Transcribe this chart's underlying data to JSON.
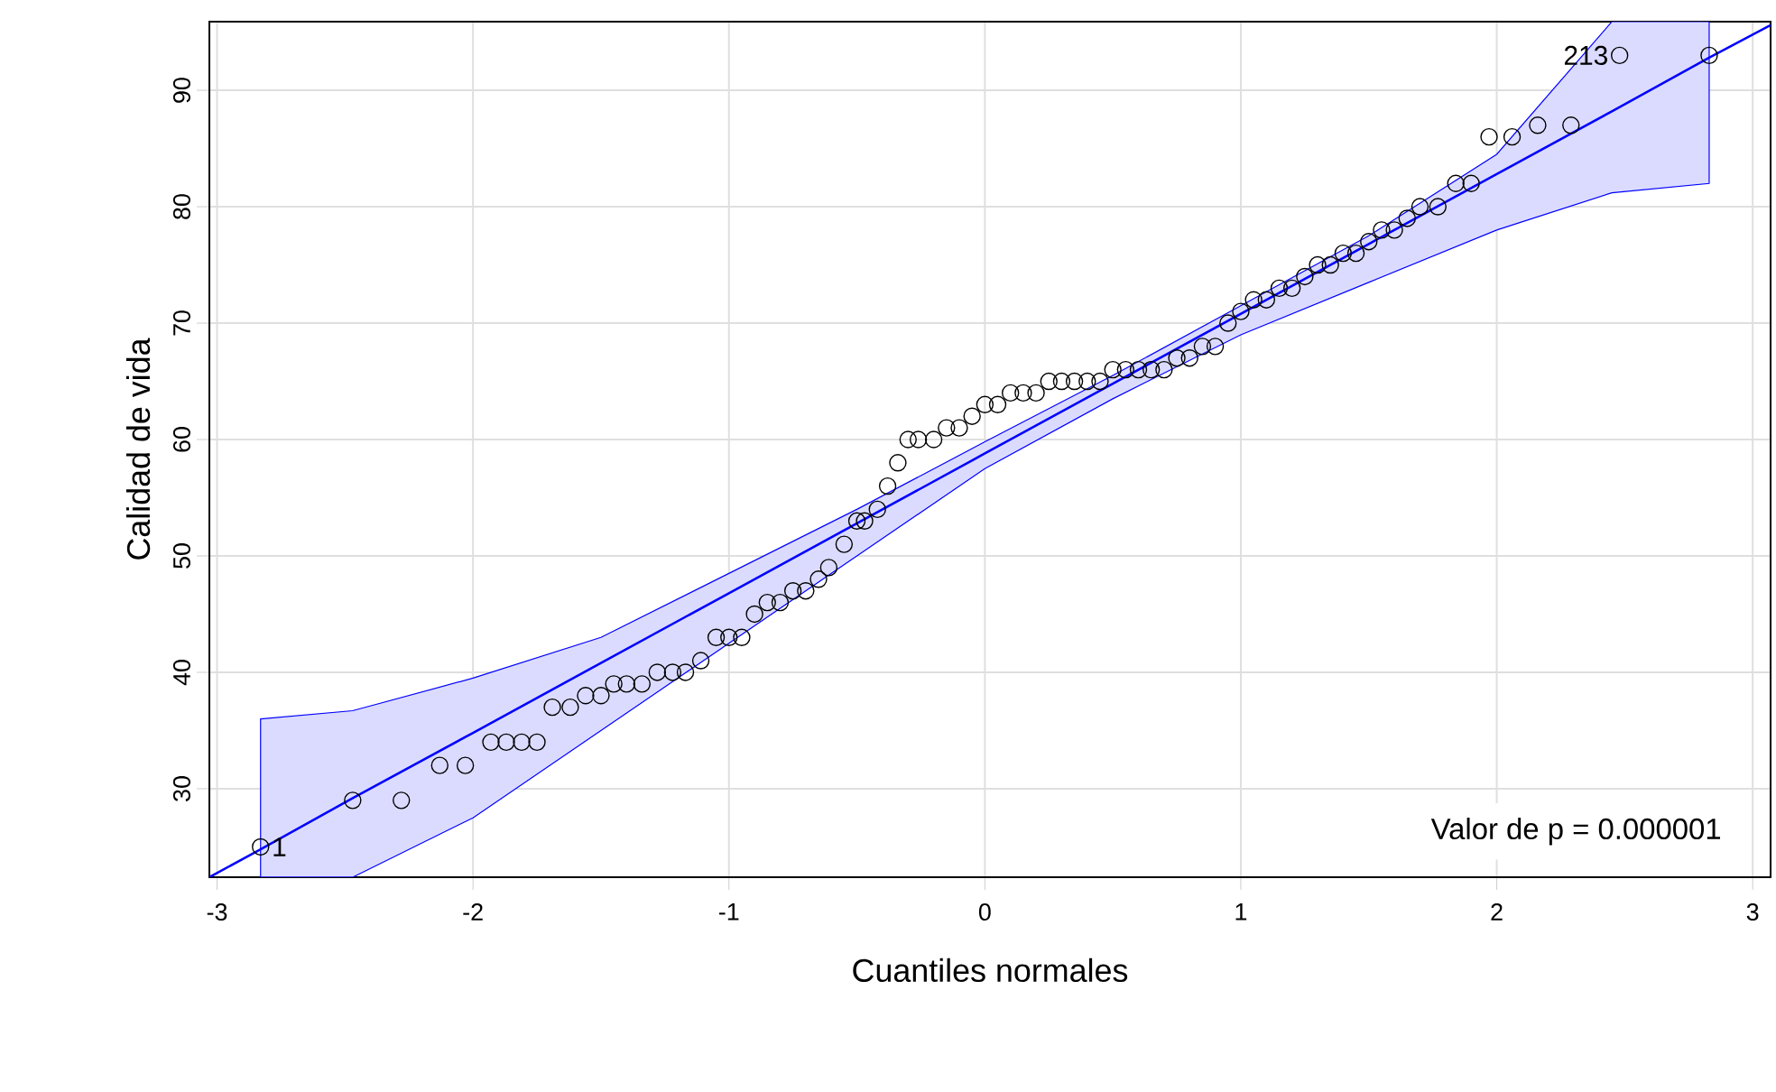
{
  "chart_data": {
    "type": "scatter",
    "xlabel": "Cuantiles normales",
    "ylabel": "Calidad de vida",
    "xlim": [
      -3.03,
      3.07
    ],
    "ylim": [
      22.4,
      95.9
    ],
    "xticks": [
      -3,
      -2,
      -1,
      0,
      1,
      2,
      3
    ],
    "yticks": [
      30,
      40,
      50,
      60,
      70,
      80,
      90
    ],
    "grid": true,
    "series": [
      {
        "type": "line",
        "color": "#0000ff",
        "x": [
          -3.03,
          -2.83,
          -2.47,
          -2,
          -1.5,
          -1,
          -0.5,
          0,
          0.5,
          1,
          1.5,
          2,
          2.45,
          2.83,
          3.07
        ],
        "values": [
          22.4,
          24.8,
          29.2,
          34.8,
          40.8,
          46.8,
          52.8,
          58.8,
          64.8,
          70.8,
          76.8,
          82.8,
          88.2,
          92.8,
          95.6
        ],
        "lower": [
          null,
          22.4,
          22.4,
          27.5,
          35,
          42.5,
          50,
          57.5,
          63.5,
          69,
          73.5,
          78,
          81.2,
          82,
          null
        ],
        "upper": [
          null,
          36,
          36.7,
          39.5,
          43,
          48.5,
          54,
          59.8,
          65.5,
          71.5,
          77.5,
          84.5,
          95.9,
          95.9,
          null
        ]
      },
      {
        "marker": "circle",
        "color": "#000000",
        "x": [
          -2.83,
          -2.47,
          -2.28,
          -2.13,
          -2.03,
          -1.93,
          -1.87,
          -1.81,
          -1.75,
          -1.69,
          -1.62,
          -1.56,
          -1.5,
          -1.45,
          -1.4,
          -1.34,
          -1.28,
          -1.22,
          -1.17,
          -1.11,
          -1.05,
          -1.0,
          -0.95,
          -0.9,
          -0.85,
          -0.8,
          -0.75,
          -0.7,
          -0.65,
          -0.61,
          -0.55,
          -0.5,
          -0.47,
          -0.42,
          -0.38,
          -0.34,
          -0.3,
          -0.26,
          -0.2,
          -0.15,
          -0.1,
          -0.05,
          0,
          0.05,
          0.1,
          0.15,
          0.2,
          0.25,
          0.3,
          0.35,
          0.4,
          0.45,
          0.5,
          0.55,
          0.6,
          0.65,
          0.7,
          0.75,
          0.8,
          0.85,
          0.9,
          0.95,
          1.0,
          1.05,
          1.1,
          1.15,
          1.2,
          1.25,
          1.3,
          1.35,
          1.4,
          1.45,
          1.5,
          1.55,
          1.6,
          1.65,
          1.7,
          1.77,
          1.84,
          1.9,
          1.97,
          2.06,
          2.16,
          2.29,
          2.48,
          2.83
        ],
        "values": [
          25,
          29,
          29,
          32,
          32,
          34,
          34,
          34,
          34,
          37,
          37,
          38,
          38,
          39,
          39,
          39,
          40,
          40,
          40,
          41,
          43,
          43,
          43,
          45,
          46,
          46,
          47,
          47,
          48,
          49,
          51,
          53,
          53,
          54,
          56,
          58,
          60,
          60,
          60,
          61,
          61,
          62,
          63,
          63,
          64,
          64,
          64,
          65,
          65,
          65,
          65,
          65,
          66,
          66,
          66,
          66,
          66,
          67,
          67,
          68,
          68,
          70,
          71,
          72,
          72,
          73,
          73,
          74,
          75,
          75,
          76,
          76,
          77,
          78,
          78,
          79,
          80,
          80,
          82,
          82,
          86,
          86,
          87,
          87,
          93,
          93
        ]
      }
    ],
    "annotations": [
      {
        "text": "1",
        "x": -2.83,
        "y": 25
      },
      {
        "text": "213",
        "x": 2.48,
        "y": 93
      },
      "Valor de p = 0.000001"
    ]
  }
}
